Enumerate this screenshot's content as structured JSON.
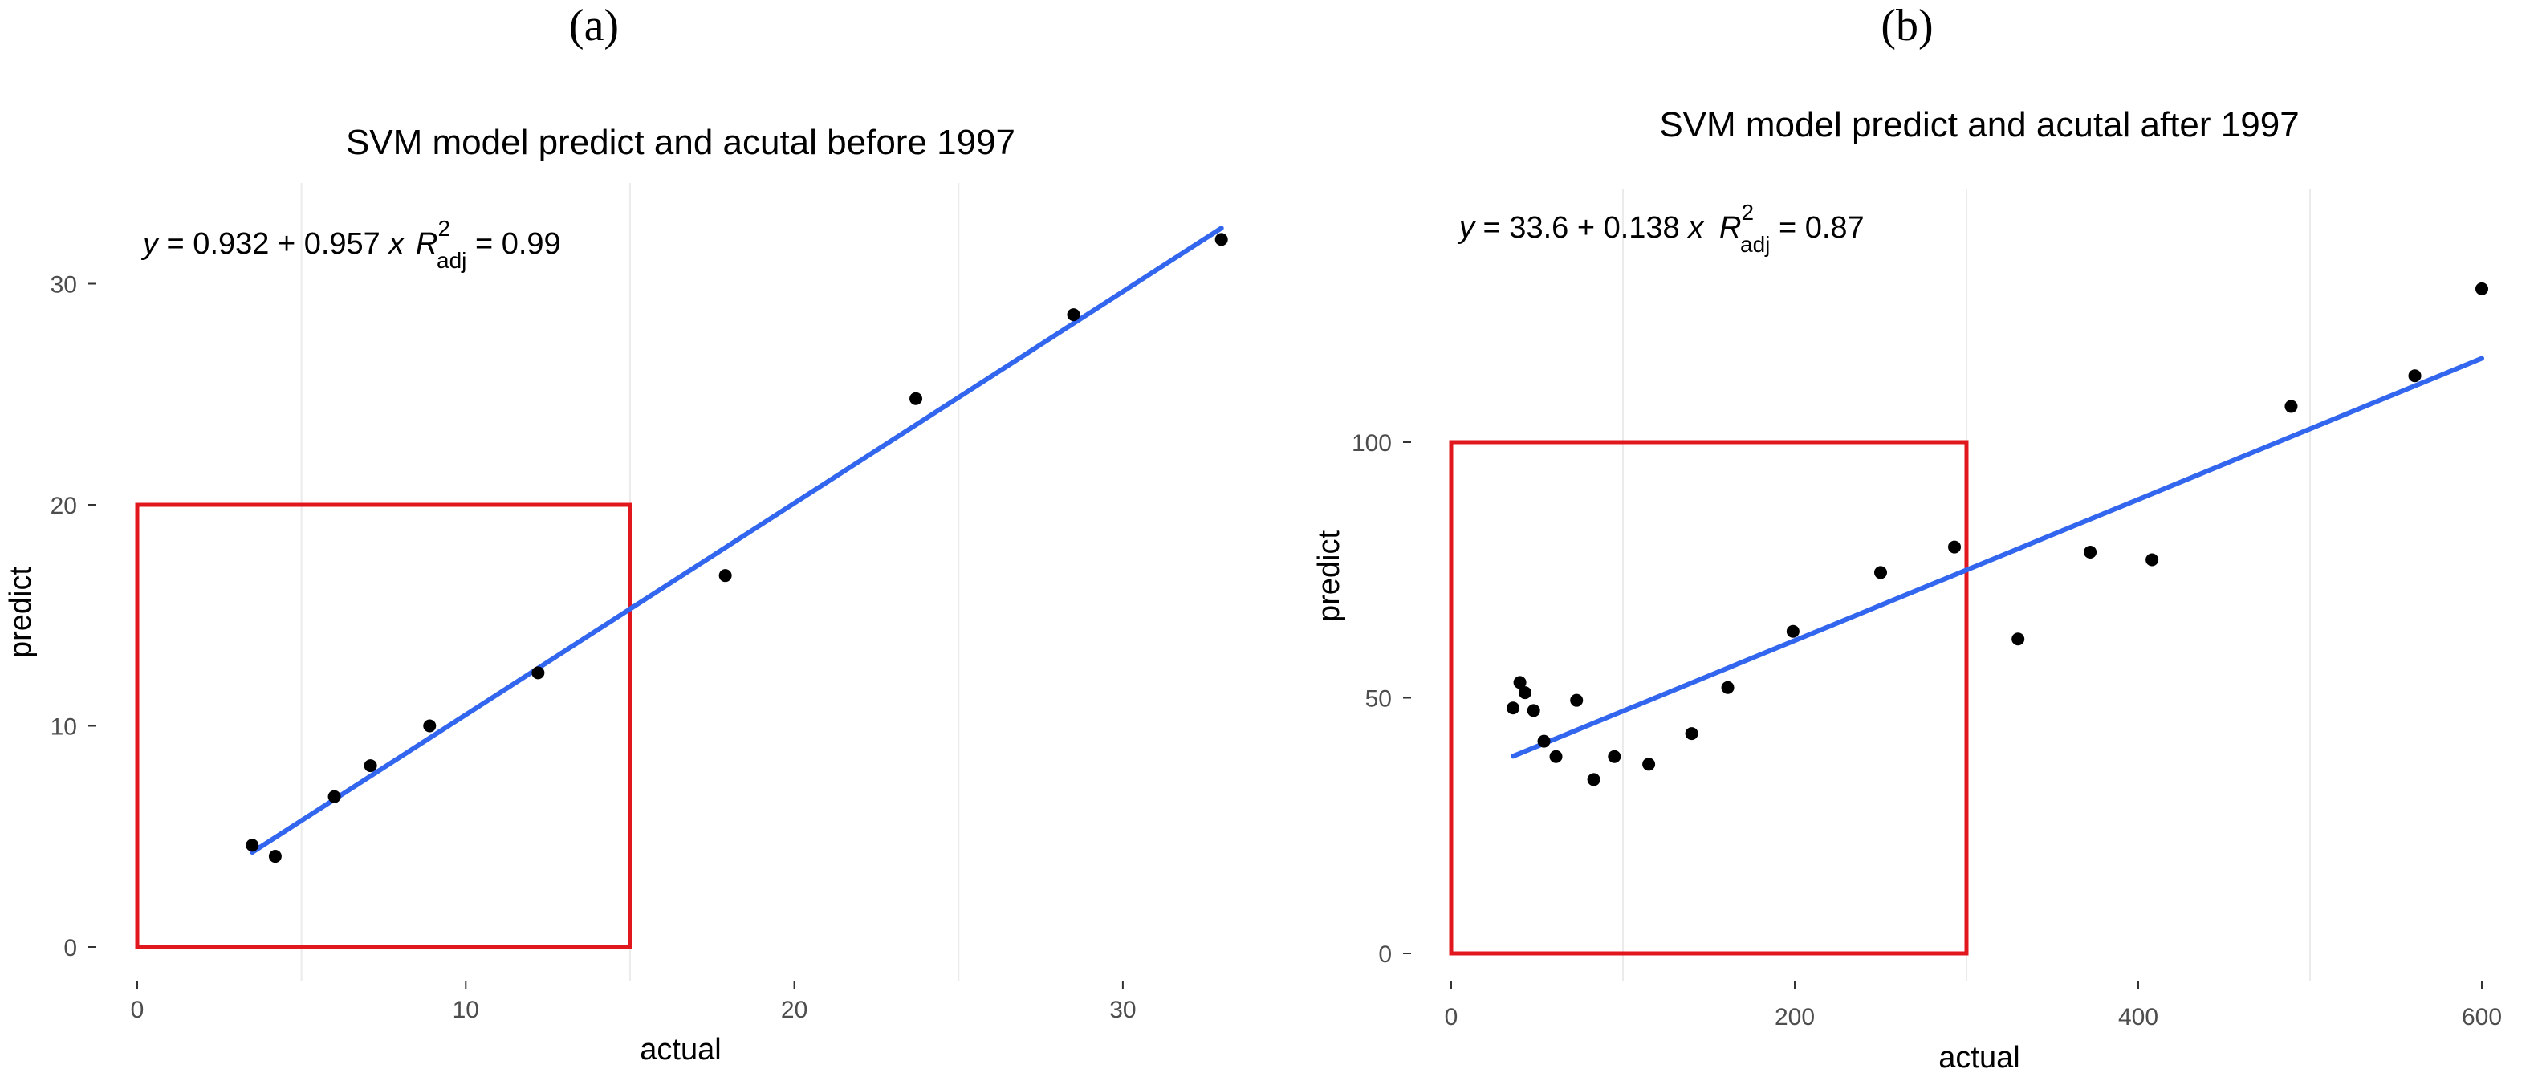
{
  "chart_data": [
    {
      "type": "scatter",
      "panel_label": "(a)",
      "title": "SVM model predict and acutal before 1997",
      "xlabel": "actual",
      "ylabel": "predict",
      "xlim": [
        0,
        33
      ],
      "ylim": [
        0,
        32
      ],
      "xticks": [
        0,
        10,
        20,
        30
      ],
      "yticks": [
        0,
        10,
        20,
        30
      ],
      "minor_x_gridlines": [
        5,
        15,
        25
      ],
      "points": [
        {
          "x": 3.5,
          "y": 4.6
        },
        {
          "x": 4.2,
          "y": 4.1
        },
        {
          "x": 6.0,
          "y": 6.8
        },
        {
          "x": 7.1,
          "y": 8.2
        },
        {
          "x": 8.9,
          "y": 10.0
        },
        {
          "x": 12.2,
          "y": 12.4
        },
        {
          "x": 17.9,
          "y": 16.8
        },
        {
          "x": 23.7,
          "y": 24.8
        },
        {
          "x": 28.5,
          "y": 28.6
        },
        {
          "x": 33.0,
          "y": 32.0
        }
      ],
      "fit": {
        "intercept": 0.932,
        "slope": 0.957,
        "x_range": [
          3.5,
          33.0
        ]
      },
      "equation": {
        "lhs": "y",
        "rhs": " = 0.932 + 0.957 ",
        "var": "x",
        "r2_label": "R",
        "r2_sup": "2",
        "r2_sub": "adj",
        "r2_value": " = 0.99"
      },
      "highlight_box": {
        "x": [
          0,
          15
        ],
        "y": [
          0,
          20
        ]
      },
      "grid": true
    },
    {
      "type": "scatter",
      "panel_label": "(b)",
      "title": "SVM model predict and acutal after 1997",
      "xlabel": "actual",
      "ylabel": "predict",
      "xlim": [
        0,
        600
      ],
      "ylim": [
        0,
        130
      ],
      "xticks": [
        0,
        200,
        400,
        600
      ],
      "yticks": [
        0,
        50,
        100
      ],
      "minor_x_gridlines": [
        100,
        300,
        500
      ],
      "points": [
        {
          "x": 36,
          "y": 48
        },
        {
          "x": 40,
          "y": 53
        },
        {
          "x": 43,
          "y": 51
        },
        {
          "x": 48,
          "y": 47.5
        },
        {
          "x": 54,
          "y": 41.5
        },
        {
          "x": 61,
          "y": 38.5
        },
        {
          "x": 73,
          "y": 49.5
        },
        {
          "x": 83,
          "y": 34
        },
        {
          "x": 95,
          "y": 38.5
        },
        {
          "x": 115,
          "y": 37
        },
        {
          "x": 140,
          "y": 43
        },
        {
          "x": 161,
          "y": 52
        },
        {
          "x": 199,
          "y": 63
        },
        {
          "x": 250,
          "y": 74.5
        },
        {
          "x": 293,
          "y": 79.5
        },
        {
          "x": 330,
          "y": 61.5
        },
        {
          "x": 372,
          "y": 78.5
        },
        {
          "x": 408,
          "y": 77
        },
        {
          "x": 489,
          "y": 107
        },
        {
          "x": 561,
          "y": 113
        },
        {
          "x": 600,
          "y": 130
        }
      ],
      "fit": {
        "intercept": 33.6,
        "slope": 0.138,
        "x_range": [
          36,
          600
        ]
      },
      "equation": {
        "lhs": "y",
        "rhs": " = 33.6 + 0.138 ",
        "var": "x",
        "r2_label": "R",
        "r2_sup": "2",
        "r2_sub": "adj",
        "r2_value": " = 0.87"
      },
      "highlight_box": {
        "x": [
          0,
          300
        ],
        "y": [
          0,
          100
        ]
      },
      "grid": true
    }
  ]
}
